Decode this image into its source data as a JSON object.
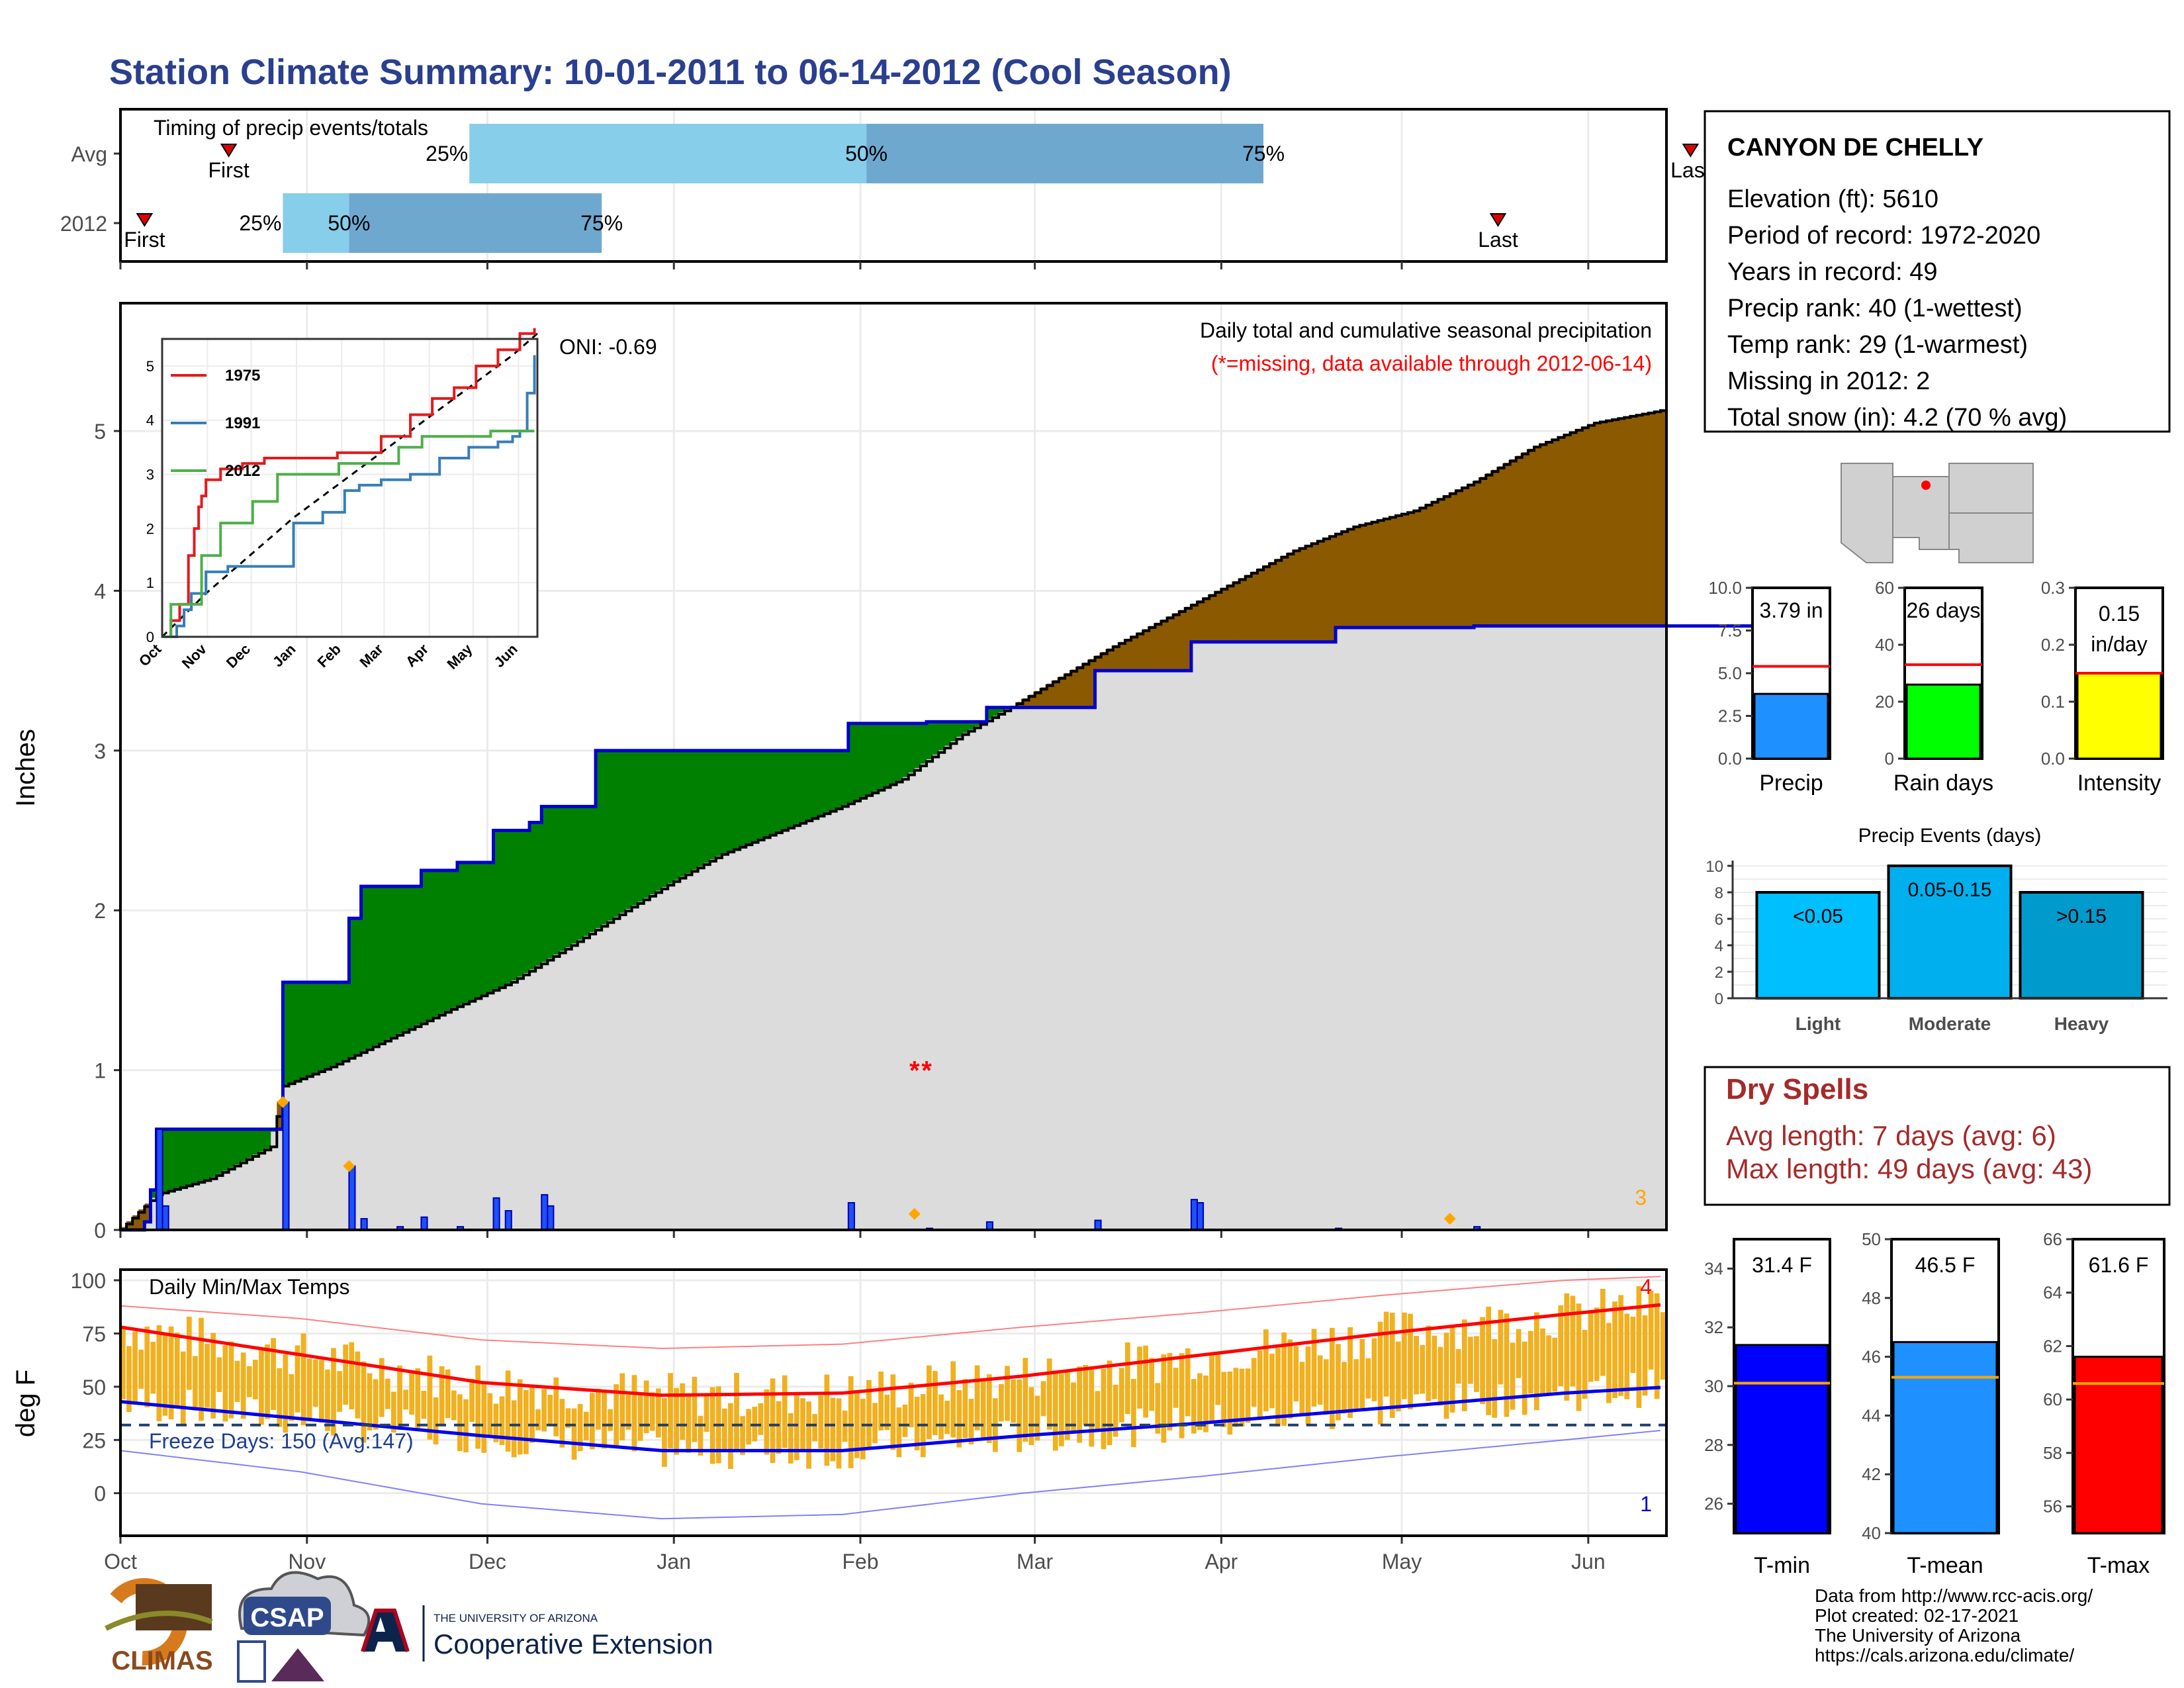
{
  "title": "Station Climate Summary: 10-01-2011 to 06-14-2012 (Cool Season)",
  "colors": {
    "title": "#2a3f8f",
    "dark_green": "#008000",
    "brown": "#8b5a00",
    "cum_gray": "#dcdcdc",
    "blue_line": "#0000cc",
    "orange": "#f0b020",
    "red": "#ff0000",
    "dry_red": "#a52a2a",
    "light_blue": "#87ceeb",
    "mid_blue": "#6fa8cf"
  },
  "chart_data": [
    {
      "type": "bar",
      "title": "Timing of precip events/totals",
      "categories": [
        "Avg",
        "2012"
      ],
      "avg": {
        "first": "First",
        "last": "Last",
        "p25": "25%",
        "p50": "50%",
        "p75": "75%",
        "first_day": 18,
        "p25_day": 58,
        "p50_day": 124,
        "p75_day": 190,
        "last_day": 261
      },
      "y2012": {
        "first": "First",
        "last": "Last",
        "p25": "25%",
        "p50": "50%",
        "p75": "75%",
        "first_day": 4,
        "p25_day": 27,
        "p50_day": 38,
        "p75_day": 80,
        "last_day": 229
      }
    },
    {
      "type": "area",
      "title": "Daily total and cumulative seasonal precipitation",
      "subtitle": "(*=missing, data available through 2012-06-14)",
      "oni": "ONI: -0.69",
      "ylabel": "Inches",
      "ylim": [
        0,
        5.8
      ],
      "yticks": [
        "0",
        "1",
        "2",
        "3",
        "4",
        "5"
      ],
      "xticks": [
        "Oct",
        "Nov",
        "Dec",
        "Jan",
        "Feb",
        "Mar",
        "Apr",
        "May",
        "Jun"
      ],
      "corner_count": "3",
      "cum_2012": [
        [
          0,
          0
        ],
        [
          4,
          0.05
        ],
        [
          5,
          0.25
        ],
        [
          6,
          0.63
        ],
        [
          16,
          0.63
        ],
        [
          27,
          0.8
        ],
        [
          27,
          1.55
        ],
        [
          38,
          1.55
        ],
        [
          38,
          1.95
        ],
        [
          40,
          2.15
        ],
        [
          50,
          2.15
        ],
        [
          50,
          2.25
        ],
        [
          56,
          2.25
        ],
        [
          56,
          2.3
        ],
        [
          62,
          2.3
        ],
        [
          62,
          2.5
        ],
        [
          68,
          2.5
        ],
        [
          68,
          2.55
        ],
        [
          70,
          2.65
        ],
        [
          79,
          2.65
        ],
        [
          79,
          3.0
        ],
        [
          121,
          3.0
        ],
        [
          121,
          3.17
        ],
        [
          134,
          3.17
        ],
        [
          134,
          3.18
        ],
        [
          144,
          3.18
        ],
        [
          144,
          3.27
        ],
        [
          162,
          3.27
        ],
        [
          162,
          3.5
        ],
        [
          178,
          3.5
        ],
        [
          178,
          3.68
        ],
        [
          202,
          3.68
        ],
        [
          202,
          3.77
        ],
        [
          225,
          3.77
        ],
        [
          225,
          3.78
        ],
        [
          257,
          3.78
        ],
        [
          275,
          3.8
        ]
      ],
      "cum_avg": [
        [
          0,
          0
        ],
        [
          6,
          0.22
        ],
        [
          15,
          0.32
        ],
        [
          25,
          0.52
        ],
        [
          27,
          0.9
        ],
        [
          35,
          1.02
        ],
        [
          45,
          1.2
        ],
        [
          55,
          1.38
        ],
        [
          65,
          1.55
        ],
        [
          75,
          1.78
        ],
        [
          85,
          2.02
        ],
        [
          92,
          2.18
        ],
        [
          100,
          2.35
        ],
        [
          110,
          2.5
        ],
        [
          120,
          2.65
        ],
        [
          130,
          2.82
        ],
        [
          140,
          3.1
        ],
        [
          148,
          3.27
        ],
        [
          155,
          3.43
        ],
        [
          165,
          3.65
        ],
        [
          175,
          3.85
        ],
        [
          185,
          4.05
        ],
        [
          195,
          4.25
        ],
        [
          205,
          4.4
        ],
        [
          215,
          4.5
        ],
        [
          225,
          4.68
        ],
        [
          235,
          4.9
        ],
        [
          245,
          5.05
        ],
        [
          255,
          5.12
        ],
        [
          265,
          5.2
        ],
        [
          275,
          5.3
        ]
      ],
      "daily_bars": [
        [
          6,
          0.63
        ],
        [
          7,
          0.15
        ],
        [
          27,
          0.8
        ],
        [
          38,
          0.4
        ],
        [
          40,
          0.07
        ],
        [
          46,
          0.02
        ],
        [
          50,
          0.08
        ],
        [
          56,
          0.02
        ],
        [
          62,
          0.2
        ],
        [
          64,
          0.12
        ],
        [
          70,
          0.22
        ],
        [
          71,
          0.15
        ],
        [
          121,
          0.17
        ],
        [
          134,
          0.01
        ],
        [
          144,
          0.05
        ],
        [
          162,
          0.06
        ],
        [
          178,
          0.19
        ],
        [
          179,
          0.17
        ],
        [
          202,
          0.01
        ],
        [
          225,
          0.02
        ]
      ],
      "missing_marks": [
        [
          132,
          1.0
        ],
        [
          134,
          1.0
        ]
      ],
      "inset": {
        "series": [
          {
            "name": "1975",
            "color": "#e41a1c",
            "values": [
              [
                0,
                0
              ],
              [
                6,
                0.3
              ],
              [
                12,
                0.6
              ],
              [
                18,
                1.5
              ],
              [
                22,
                2.0
              ],
              [
                25,
                2.4
              ],
              [
                27,
                2.6
              ],
              [
                30,
                2.9
              ],
              [
                40,
                3.1
              ],
              [
                55,
                3.2
              ],
              [
                70,
                3.3
              ],
              [
                90,
                3.3
              ],
              [
                100,
                3.3
              ],
              [
                120,
                3.4
              ],
              [
                150,
                3.7
              ],
              [
                170,
                4.1
              ],
              [
                185,
                4.4
              ],
              [
                200,
                4.6
              ],
              [
                215,
                5.0
              ],
              [
                230,
                5.3
              ],
              [
                245,
                5.6
              ],
              [
                255,
                5.7
              ]
            ]
          },
          {
            "name": "1991",
            "color": "#377eb8",
            "values": [
              [
                0,
                0
              ],
              [
                10,
                0.2
              ],
              [
                15,
                0.5
              ],
              [
                20,
                0.8
              ],
              [
                30,
                1.2
              ],
              [
                45,
                1.3
              ],
              [
                60,
                1.3
              ],
              [
                80,
                1.3
              ],
              [
                90,
                2.1
              ],
              [
                110,
                2.3
              ],
              [
                125,
                2.7
              ],
              [
                135,
                2.8
              ],
              [
                150,
                2.9
              ],
              [
                170,
                3.0
              ],
              [
                190,
                3.3
              ],
              [
                210,
                3.5
              ],
              [
                230,
                3.6
              ],
              [
                240,
                3.7
              ],
              [
                245,
                3.8
              ],
              [
                250,
                4.5
              ],
              [
                255,
                5.2
              ]
            ]
          },
          {
            "name": "2012",
            "color": "#4daf4a",
            "values": [
              [
                0,
                0
              ],
              [
                6,
                0.6
              ],
              [
                27,
                1.5
              ],
              [
                40,
                2.1
              ],
              [
                62,
                2.5
              ],
              [
                79,
                3.0
              ],
              [
                121,
                3.2
              ],
              [
                162,
                3.5
              ],
              [
                178,
                3.7
              ],
              [
                225,
                3.8
              ],
              [
                255,
                3.8
              ]
            ]
          }
        ],
        "avg_series": [
          [
            0,
            0
          ],
          [
            30,
            0.8
          ],
          [
            60,
            1.5
          ],
          [
            90,
            2.2
          ],
          [
            120,
            2.8
          ],
          [
            150,
            3.4
          ],
          [
            180,
            4.0
          ],
          [
            210,
            4.6
          ],
          [
            240,
            5.2
          ],
          [
            257,
            5.6
          ]
        ],
        "yticks": [
          "0",
          "1",
          "2",
          "3",
          "4",
          "5"
        ],
        "xticks": [
          "Oct",
          "Nov",
          "Dec",
          "Jan",
          "Feb",
          "Mar",
          "Apr",
          "May",
          "Jun"
        ]
      }
    },
    {
      "type": "bar",
      "title": "Daily Min/Max Temps",
      "ylabel": "deg F",
      "ylim": [
        -20,
        105
      ],
      "yticks": [
        "0",
        "25",
        "50",
        "75",
        "100"
      ],
      "xticks": [
        "Oct",
        "Nov",
        "Dec",
        "Jan",
        "Feb",
        "Mar",
        "Apr",
        "May",
        "Jun"
      ],
      "freeze_label": "Freeze Days: 150 (Avg:147)",
      "freeze_line": 32,
      "count_high": "4",
      "count_low": "1",
      "avg_max": [
        [
          0,
          78
        ],
        [
          30,
          65
        ],
        [
          60,
          52
        ],
        [
          90,
          46
        ],
        [
          120,
          47
        ],
        [
          150,
          55
        ],
        [
          180,
          65
        ],
        [
          210,
          75
        ],
        [
          240,
          84
        ],
        [
          258,
          89
        ]
      ],
      "avg_min": [
        [
          0,
          43
        ],
        [
          30,
          35
        ],
        [
          60,
          27
        ],
        [
          90,
          20
        ],
        [
          120,
          20
        ],
        [
          150,
          27
        ],
        [
          180,
          33
        ],
        [
          210,
          40
        ],
        [
          240,
          47
        ],
        [
          258,
          50
        ]
      ],
      "rec_max": [
        [
          0,
          88
        ],
        [
          30,
          82
        ],
        [
          60,
          72
        ],
        [
          90,
          68
        ],
        [
          120,
          70
        ],
        [
          150,
          78
        ],
        [
          180,
          85
        ],
        [
          210,
          93
        ],
        [
          240,
          100
        ],
        [
          258,
          102
        ]
      ],
      "rec_min": [
        [
          0,
          20
        ],
        [
          30,
          10
        ],
        [
          60,
          -5
        ],
        [
          90,
          -12
        ],
        [
          120,
          -10
        ],
        [
          150,
          0
        ],
        [
          180,
          8
        ],
        [
          210,
          17
        ],
        [
          240,
          25
        ],
        [
          258,
          30
        ]
      ]
    },
    {
      "type": "bar",
      "categories": [
        "Precip",
        "Rain days",
        "Intensity"
      ],
      "values": [
        3.79,
        26,
        0.15
      ],
      "value_labels": [
        "3.79 in",
        "26 days",
        "0.15 in/day"
      ],
      "averages": [
        5.4,
        33,
        0.15
      ],
      "ylims": [
        [
          0,
          10.0
        ],
        [
          0,
          60
        ],
        [
          0,
          0.3
        ]
      ],
      "yticks": [
        [
          "0.0",
          "2.5",
          "5.0",
          "7.5",
          "10.0"
        ],
        [
          "0",
          "20",
          "40",
          "60"
        ],
        [
          "0.0",
          "0.1",
          "0.2",
          "0.3"
        ]
      ],
      "fill_colors": [
        "#1e90ff",
        "#00ff00",
        "#ffff00"
      ]
    },
    {
      "type": "bar",
      "title": "Precip Events (days)",
      "categories": [
        "Light",
        "Moderate",
        "Heavy"
      ],
      "values": [
        8,
        10,
        8
      ],
      "value_labels": [
        "<0.05",
        "0.05-0.15",
        ">0.15"
      ],
      "ylim": [
        0,
        10
      ],
      "yticks": [
        "0",
        "2",
        "4",
        "6",
        "8",
        "10"
      ],
      "fill_colors": [
        "#00bfff",
        "#00b0ee",
        "#009acd"
      ]
    },
    {
      "type": "bar",
      "categories": [
        "T-min",
        "T-mean",
        "T-max"
      ],
      "values": [
        31.4,
        46.5,
        61.6
      ],
      "value_labels": [
        "31.4 F",
        "46.5 F",
        "61.6 F"
      ],
      "averages": [
        30.1,
        45.3,
        60.6
      ],
      "ylims": [
        [
          25,
          35
        ],
        [
          40,
          50
        ],
        [
          55,
          66
        ]
      ],
      "yticks": [
        [
          "26",
          "28",
          "30",
          "32",
          "34"
        ],
        [
          "40",
          "42",
          "44",
          "46",
          "48",
          "50"
        ],
        [
          "56",
          "58",
          "60",
          "62",
          "64",
          "66"
        ]
      ],
      "fill_colors": [
        "#0000ff",
        "#1e90ff",
        "#ff0000"
      ]
    }
  ],
  "station": {
    "name": "CANYON DE CHELLY",
    "lines": [
      "Elevation (ft): 5610",
      "Period of record: 1972-2020",
      "Years in record: 49",
      "Precip rank: 40 (1-wettest)",
      "Temp rank: 29 (1-warmest)",
      "Missing in 2012: 2",
      "Total snow (in): 4.2 (70 % avg)"
    ]
  },
  "dry_spells": {
    "title": "Dry Spells",
    "avg": "Avg length: 7 days (avg: 6)",
    "max": "Max length: 49 days (avg: 43)"
  },
  "footer": {
    "lines": [
      "Data from http://www.rcc-acis.org/",
      "Plot created: 02-17-2021",
      "The University of Arizona",
      "https://cals.arizona.edu/climate/"
    ],
    "logo_climas": "CLIMAS",
    "logo_csap": "CSAP",
    "logo_ua_small": "THE UNIVERSITY OF ARIZONA",
    "logo_ua_big": "Cooperative Extension"
  }
}
